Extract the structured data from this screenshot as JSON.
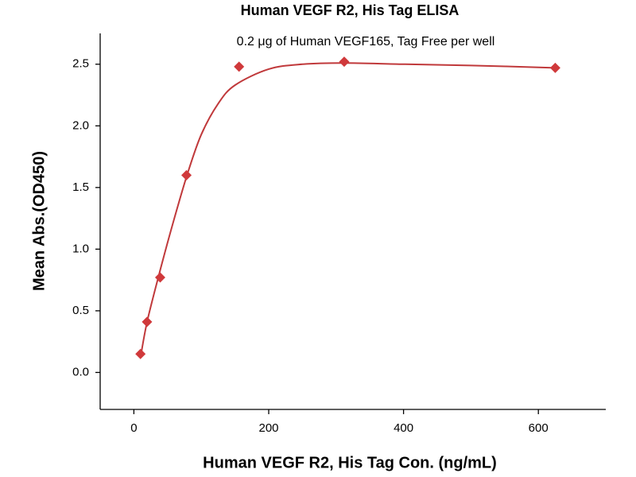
{
  "chart_data": {
    "type": "scatter",
    "title": "Human VEGF R2, His Tag ELISA",
    "subtitle": "0.2 μg of Human VEGF165, Tag Free per well",
    "x_label": "Human VEGF R2, His Tag Con. (ng/mL)",
    "y_label": "Mean Abs.(OD450)",
    "xlim": [
      -50,
      700
    ],
    "ylim": [
      -0.3,
      2.75
    ],
    "xticks": [
      0,
      200,
      400,
      600
    ],
    "yticks": [
      {
        "value": 0,
        "label": "0.0"
      },
      0.5,
      {
        "value": 1,
        "label": "1.0"
      },
      1.5,
      {
        "value": 2,
        "label": "2.0"
      },
      2.5
    ],
    "series": [
      {
        "color": "#d0393b",
        "marker": "diamond",
        "x": [
          9.77,
          19.5,
          39,
          78,
          156,
          312,
          625
        ],
        "values": [
          0.15,
          0.41,
          0.77,
          1.6,
          2.48,
          2.52,
          2.47
        ]
      }
    ],
    "fit": {
      "color": "#c0393b",
      "x": [
        9.77,
        20,
        40,
        60,
        80,
        100,
        125,
        150,
        200,
        250,
        312,
        400,
        500,
        625
      ],
      "values": [
        0.12,
        0.42,
        0.85,
        1.25,
        1.62,
        1.93,
        2.18,
        2.33,
        2.46,
        2.5,
        2.51,
        2.5,
        2.49,
        2.47
      ]
    }
  }
}
